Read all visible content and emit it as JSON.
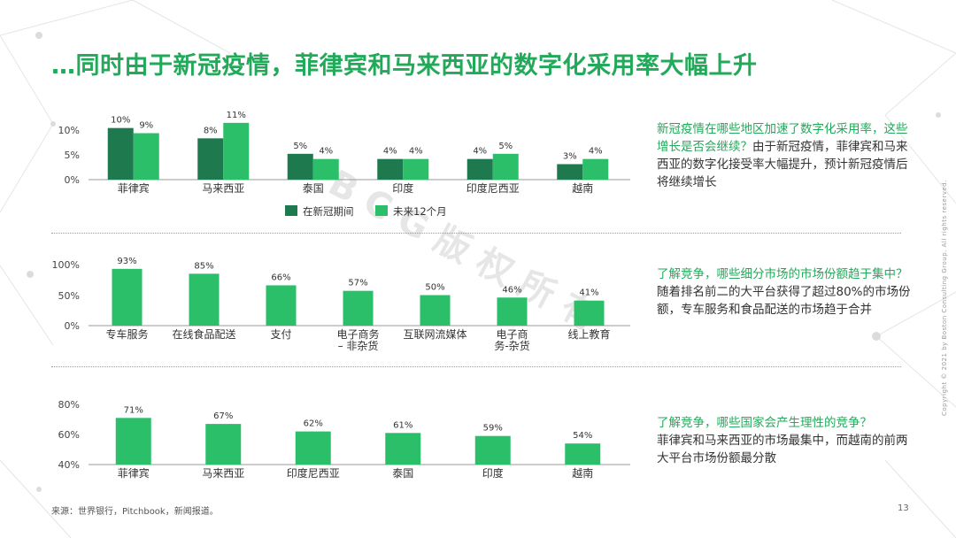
{
  "title": "…同时由于新冠疫情，菲律宾和马来西亚的数字化采用率大幅上升",
  "colors": {
    "dark_green": "#1e7a4e",
    "light_green": "#2bbf6a",
    "accent": "#22a95a"
  },
  "watermark": "BCG版权所有",
  "copyright": "Copyright © 2021 by Boston Consulting Group. All rights reserved.",
  "source": "来源：世界银行，Pitchbook，新闻报道。",
  "page_number": "13",
  "notes": {
    "n1_hl": "新冠疫情在哪些地区加速了数字化采用率，这些增长是否会继续？",
    "n1_body": "由于新冠疫情，菲律宾和马来西亚的数字化接受率大幅提升，预计新冠疫情后将继续增长",
    "n2_hl": "了解竞争，哪些细分市场的市场份额趋于集中？",
    "n2_body": "随着排名前二的大平台获得了超过80%的市场份额，专车服务和食品配送的市场趋于合并",
    "n3_hl": "了解竞争，哪些国家会产生理性的竞争？",
    "n3_body": "菲律宾和马来西亚的市场最集中，而越南的前两大平台市场份额最分散"
  },
  "chart_data": [
    {
      "type": "bar",
      "categories": [
        "菲律宾",
        "马来西亚",
        "泰国",
        "印度",
        "印度尼西亚",
        "越南"
      ],
      "series": [
        {
          "name": "在新冠期间",
          "values": [
            10,
            8,
            5,
            4,
            4,
            3
          ],
          "labels": [
            "10%",
            "8%",
            "5%",
            "4%",
            "4%",
            "3%"
          ],
          "color": "#1e7a4e"
        },
        {
          "name": "未来12个月",
          "values": [
            9,
            11,
            4,
            4,
            5,
            4
          ],
          "labels": [
            "9%",
            "11%",
            "4%",
            "4%",
            "5%",
            "4%"
          ],
          "color": "#2bbf6a"
        }
      ],
      "yticks": [
        "0%",
        "5%",
        "10%"
      ],
      "ylim": [
        0,
        12
      ],
      "legend": "bottom"
    },
    {
      "type": "bar",
      "categories": [
        [
          "专车服务"
        ],
        [
          "在线食品配送"
        ],
        [
          "支付"
        ],
        [
          "电子商务",
          "– 非杂货"
        ],
        [
          "互联网流媒体"
        ],
        [
          "电子商",
          "务-杂货"
        ],
        [
          "线上教育"
        ]
      ],
      "series": [
        {
          "values": [
            93,
            85,
            66,
            57,
            50,
            46,
            41
          ],
          "labels": [
            "93%",
            "85%",
            "66%",
            "57%",
            "50%",
            "46%",
            "41%"
          ],
          "color": "#2bbf6a"
        }
      ],
      "yticks": [
        "0%",
        "50%",
        "100%"
      ],
      "ylim": [
        0,
        100
      ]
    },
    {
      "type": "bar",
      "categories": [
        "菲律宾",
        "马来西亚",
        "印度尼西亚",
        "泰国",
        "印度",
        "越南"
      ],
      "series": [
        {
          "values": [
            71,
            67,
            62,
            61,
            59,
            54
          ],
          "labels": [
            "71%",
            "67%",
            "62%",
            "61%",
            "59%",
            "54%"
          ],
          "color": "#2bbf6a"
        }
      ],
      "yticks": [
        "40%",
        "60%",
        "80%"
      ],
      "ylim": [
        40,
        80
      ]
    }
  ]
}
